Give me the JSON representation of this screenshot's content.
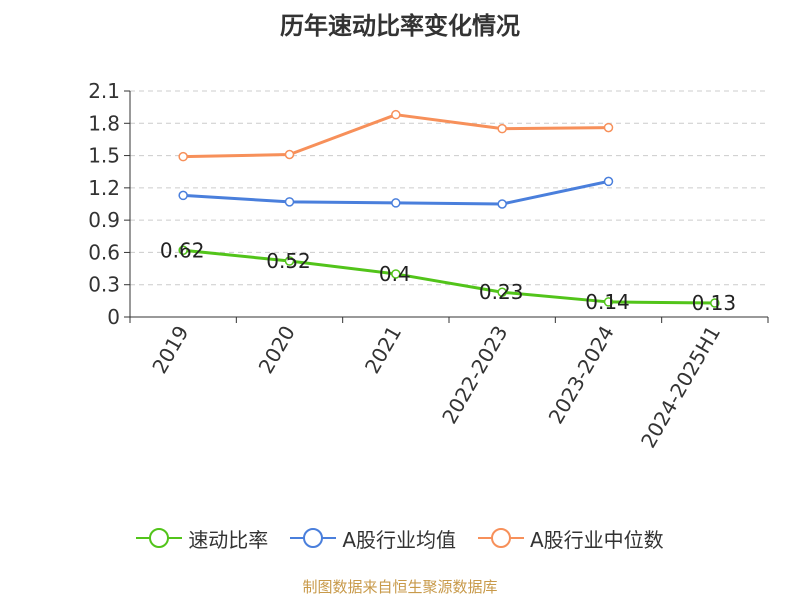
{
  "title": "历年速动比率变化情况",
  "source": "制图数据来自恒生聚源数据库",
  "chart_data": {
    "type": "line",
    "categories": [
      "2019",
      "2020",
      "2021",
      "2022-2023",
      "2023-2024",
      "2024-2025H1"
    ],
    "ylim": [
      0,
      2.1
    ],
    "yticks": [
      "0",
      "0.3",
      "0.6",
      "0.9",
      "1.2",
      "1.5",
      "1.8",
      "2.1"
    ],
    "grid": true,
    "legend_position": "bottom",
    "series": [
      {
        "name": "速动比率",
        "color": "#52c41a",
        "values": [
          0.62,
          0.52,
          0.4,
          0.23,
          0.14,
          0.13
        ],
        "labels": [
          "0.62",
          "0.52",
          "0.4",
          "0.23",
          "0.14",
          "0.13"
        ]
      },
      {
        "name": "A股行业均值",
        "color": "#4a7fdc",
        "values": [
          1.13,
          1.07,
          1.06,
          1.05,
          1.26,
          null
        ]
      },
      {
        "name": "A股行业中位数",
        "color": "#f7905a",
        "values": [
          1.49,
          1.51,
          1.88,
          1.75,
          1.76,
          null
        ]
      }
    ]
  }
}
